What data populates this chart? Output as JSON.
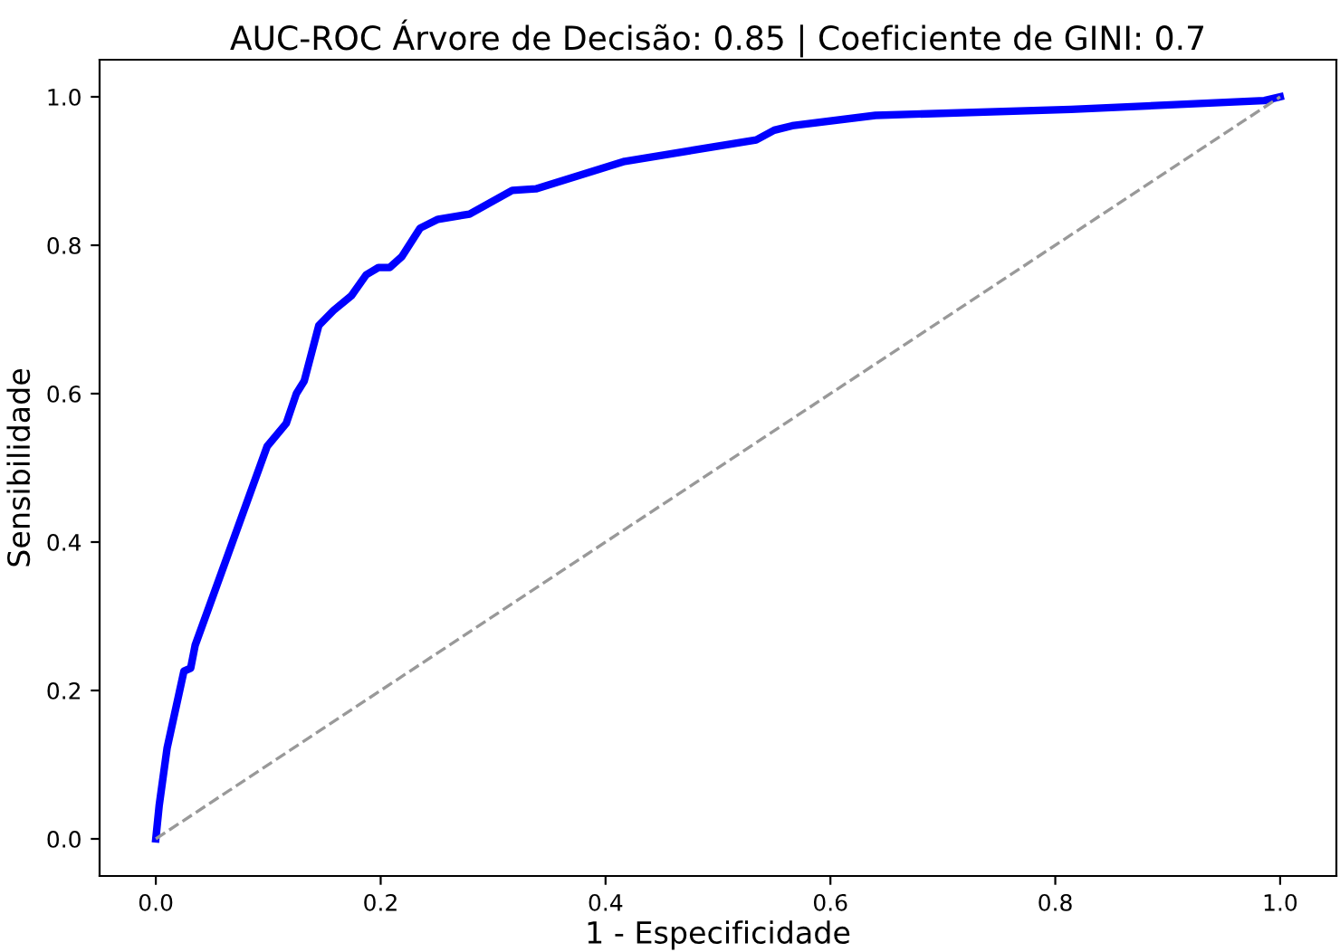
{
  "chart_data": {
    "type": "line",
    "title": "AUC-ROC Árvore de Decisão: 0.85 | Coeficiente de GINI: 0.7",
    "xlabel": "1 - Especificidade",
    "ylabel": "Sensibilidade",
    "xlim": [
      -0.05,
      1.05
    ],
    "ylim": [
      -0.05,
      1.05
    ],
    "xticks": [
      {
        "value": 0,
        "label": "0.0"
      },
      0.2,
      0.4,
      0.6,
      0.8,
      {
        "value": 1,
        "label": "1.0"
      }
    ],
    "yticks": [
      {
        "value": 0,
        "label": "0.0"
      },
      0.2,
      0.4,
      0.6,
      0.8,
      {
        "value": 1,
        "label": "1.0"
      }
    ],
    "grid": false,
    "legend": false,
    "series": [
      {
        "color": "#0000ff",
        "line_style": "solid",
        "x": [
          0,
          0.003,
          0.01,
          0.025,
          0.031,
          0.035,
          0.099,
          0.116,
          0.125,
          0.132,
          0.145,
          0.158,
          0.174,
          0.187,
          0.198,
          0.208,
          0.219,
          0.235,
          0.251,
          0.279,
          0.317,
          0.338,
          0.417,
          0.534,
          0.55,
          0.566,
          0.64,
          0.814,
          0.986,
          1.0
        ],
        "values": [
          0,
          0.045,
          0.122,
          0.226,
          0.23,
          0.261,
          0.529,
          0.56,
          0.6,
          0.617,
          0.692,
          0.712,
          0.732,
          0.76,
          0.77,
          0.77,
          0.785,
          0.823,
          0.835,
          0.842,
          0.874,
          0.876,
          0.913,
          0.942,
          0.955,
          0.961,
          0.975,
          0.983,
          0.995,
          1.0
        ]
      },
      {
        "color": "#999999",
        "line_style": "dashed",
        "x": [
          0,
          1
        ],
        "values": [
          0,
          1
        ]
      }
    ]
  }
}
